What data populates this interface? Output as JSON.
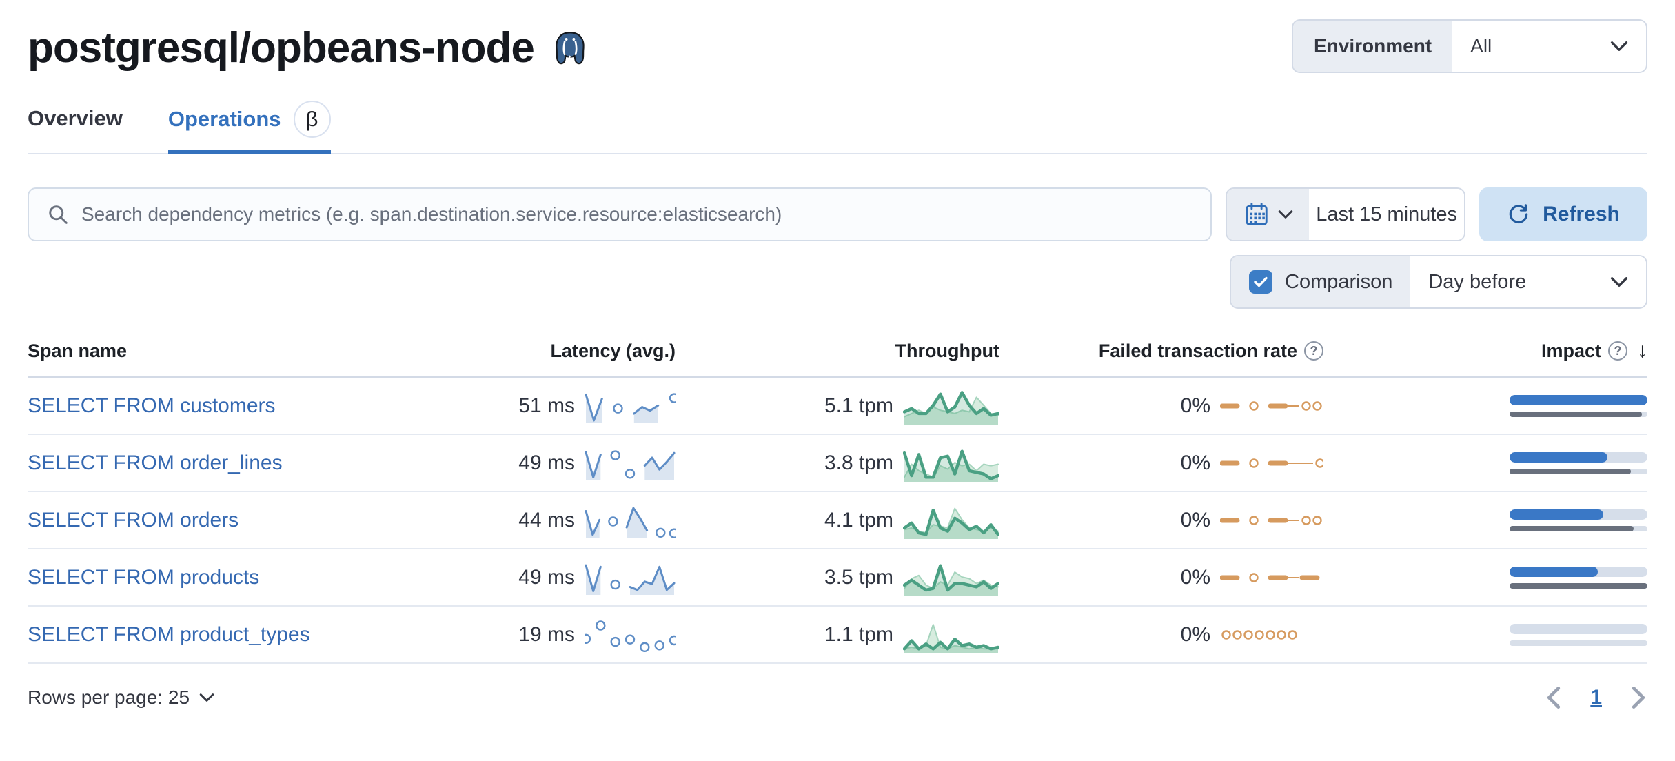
{
  "page": {
    "title": "postgresql/opbeans-node",
    "title_icon": "postgresql-elephant-icon"
  },
  "environment_filter": {
    "label": "Environment",
    "value": "All"
  },
  "tabs": [
    {
      "label": "Overview",
      "active": false
    },
    {
      "label": "Operations",
      "active": true,
      "badge": "β"
    }
  ],
  "toolbar": {
    "search_placeholder": "Search dependency metrics (e.g. span.destination.service.resource:elasticsearch)",
    "search_value": "",
    "time_range": "Last 15 minutes",
    "refresh_label": "Refresh",
    "comparison_label": "Comparison",
    "comparison_checked": true,
    "comparison_value": "Day before"
  },
  "table": {
    "columns": [
      {
        "label": "Span name",
        "align": "left"
      },
      {
        "label": "Latency (avg.)",
        "align": "right"
      },
      {
        "label": "Throughput",
        "align": "right"
      },
      {
        "label": "Failed transaction rate",
        "align": "right",
        "has_info_icon": true
      },
      {
        "label": "Impact",
        "align": "right",
        "has_info_icon": true,
        "sorted": "desc"
      }
    ],
    "rows": [
      {
        "span_name": "SELECT FROM customers",
        "latency": "51 ms",
        "throughput": "5.1 tpm",
        "failed_rate": "0%",
        "impact_pct": 100,
        "impact_prev_pct": 96,
        "latency_spark": [
          0.92,
          0.05,
          0.78,
          null,
          0.45,
          null,
          0.28,
          0.5,
          0.38,
          0.55,
          null,
          0.8
        ],
        "throughput_spark": {
          "current": [
            0.35,
            0.45,
            0.3,
            0.3,
            0.55,
            0.9,
            0.35,
            0.5,
            0.95,
            0.55,
            0.3,
            0.45,
            0.25,
            0.3
          ],
          "previous": [
            0.2,
            0.3,
            0.4,
            0.3,
            0.5,
            0.4,
            0.35,
            0.3,
            0.4,
            0.35,
            0.8,
            0.55,
            0.3,
            0.25
          ]
        },
        "failed_spark": [
          "dash",
          "gap",
          "ring",
          "gap",
          "dash",
          "thin",
          "ring",
          "ring"
        ]
      },
      {
        "span_name": "SELECT FROM order_lines",
        "latency": "49 ms",
        "throughput": "3.8 tpm",
        "failed_rate": "0%",
        "impact_pct": 71,
        "impact_prev_pct": 88,
        "latency_spark": [
          0.9,
          0.06,
          0.82,
          null,
          0.8,
          null,
          0.18,
          null,
          0.45,
          0.72,
          0.32,
          0.58,
          0.88
        ],
        "throughput_spark": {
          "current": [
            0.85,
            0.15,
            0.8,
            0.1,
            0.1,
            0.7,
            0.75,
            0.2,
            0.9,
            0.3,
            0.25,
            0.2,
            0.05,
            0.15
          ],
          "previous": [
            0.1,
            0.5,
            0.3,
            0.2,
            0.1,
            0.45,
            0.35,
            0.55,
            0.45,
            0.5,
            0.3,
            0.5,
            0.45,
            0.5
          ]
        },
        "failed_spark": [
          "dash",
          "gap",
          "ring",
          "gap",
          "dash",
          "thin",
          "thin",
          "ring"
        ]
      },
      {
        "span_name": "SELECT FROM orders",
        "latency": "44 ms",
        "throughput": "4.1 tpm",
        "failed_rate": "0%",
        "impact_pct": 68,
        "impact_prev_pct": 90,
        "latency_spark": [
          0.85,
          0.05,
          0.55,
          null,
          0.5,
          null,
          0.3,
          0.95,
          0.6,
          0.2,
          null,
          0.12,
          null,
          0.1
        ],
        "throughput_spark": {
          "current": [
            0.3,
            0.45,
            0.15,
            0.1,
            0.85,
            0.3,
            0.2,
            0.6,
            0.45,
            0.25,
            0.35,
            0.15,
            0.4,
            0.1
          ],
          "previous": [
            0.25,
            0.3,
            0.2,
            0.15,
            0.4,
            0.35,
            0.3,
            0.9,
            0.55,
            0.3,
            0.25,
            0.2,
            0.3,
            0.2
          ]
        },
        "failed_spark": [
          "dash",
          "gap",
          "ring",
          "gap",
          "dash",
          "thin",
          "ring",
          "ring"
        ]
      },
      {
        "span_name": "SELECT FROM products",
        "latency": "49 ms",
        "throughput": "3.5 tpm",
        "failed_rate": "0%",
        "impact_pct": 64,
        "impact_prev_pct": 100,
        "latency_spark": [
          0.95,
          0.08,
          0.9,
          null,
          0.3,
          null,
          0.22,
          0.12,
          0.4,
          0.32,
          0.9,
          0.12,
          0.35
        ],
        "throughput_spark": {
          "current": [
            0.3,
            0.45,
            0.3,
            0.15,
            0.2,
            0.9,
            0.15,
            0.35,
            0.35,
            0.3,
            0.25,
            0.4,
            0.2,
            0.35
          ],
          "previous": [
            0.2,
            0.5,
            0.6,
            0.3,
            0.2,
            0.4,
            0.3,
            0.7,
            0.55,
            0.5,
            0.35,
            0.45,
            0.3,
            0.25
          ]
        },
        "failed_spark": [
          "dash",
          "gap",
          "ring",
          "gap",
          "dash",
          "thin",
          "dash"
        ]
      },
      {
        "span_name": "SELECT FROM product_types",
        "latency": "19 ms",
        "throughput": "1.1 tpm",
        "failed_rate": "0%",
        "impact_pct": 0,
        "impact_prev_pct": 0,
        "latency_spark": [
          0.4,
          null,
          0.85,
          null,
          0.3,
          null,
          0.38,
          null,
          0.12,
          null,
          0.18,
          null,
          0.35
        ],
        "throughput_spark": {
          "current": [
            0.1,
            0.35,
            0.1,
            0.25,
            0.1,
            0.3,
            0.1,
            0.4,
            0.2,
            0.25,
            0.15,
            0.2,
            0.1,
            0.15
          ],
          "previous": [
            0.1,
            0.15,
            0.1,
            0.2,
            0.85,
            0.15,
            0.1,
            0.2,
            0.15,
            0.1,
            0.15,
            0.1,
            0.1,
            0.1
          ]
        },
        "failed_spark": [
          "ring",
          "ring",
          "ring",
          "ring",
          "ring",
          "ring",
          "ring"
        ]
      }
    ]
  },
  "pagination": {
    "rows_per_page_label": "Rows per page: 25",
    "current_page": "1"
  },
  "colors": {
    "accent_blue": "#3471bd",
    "link": "#3468b1",
    "latency_spark": "#5e8dc6",
    "latency_fill": "#dbe5f1",
    "throughput_spark": "#4aa083",
    "throughput_fill": "rgba(84,166,133,0.25)",
    "throughput_prev_spark": "#a5d4bd",
    "throughput_prev_fill": "#d7ecdf",
    "failed_spark": "#d69a5e",
    "impact_bar": "#3a78c6",
    "impact_prev_bar": "#69707d",
    "refresh_bg": "#cfe2f4",
    "refresh_text": "#215a9d",
    "checkbox": "#3c7dc6"
  }
}
